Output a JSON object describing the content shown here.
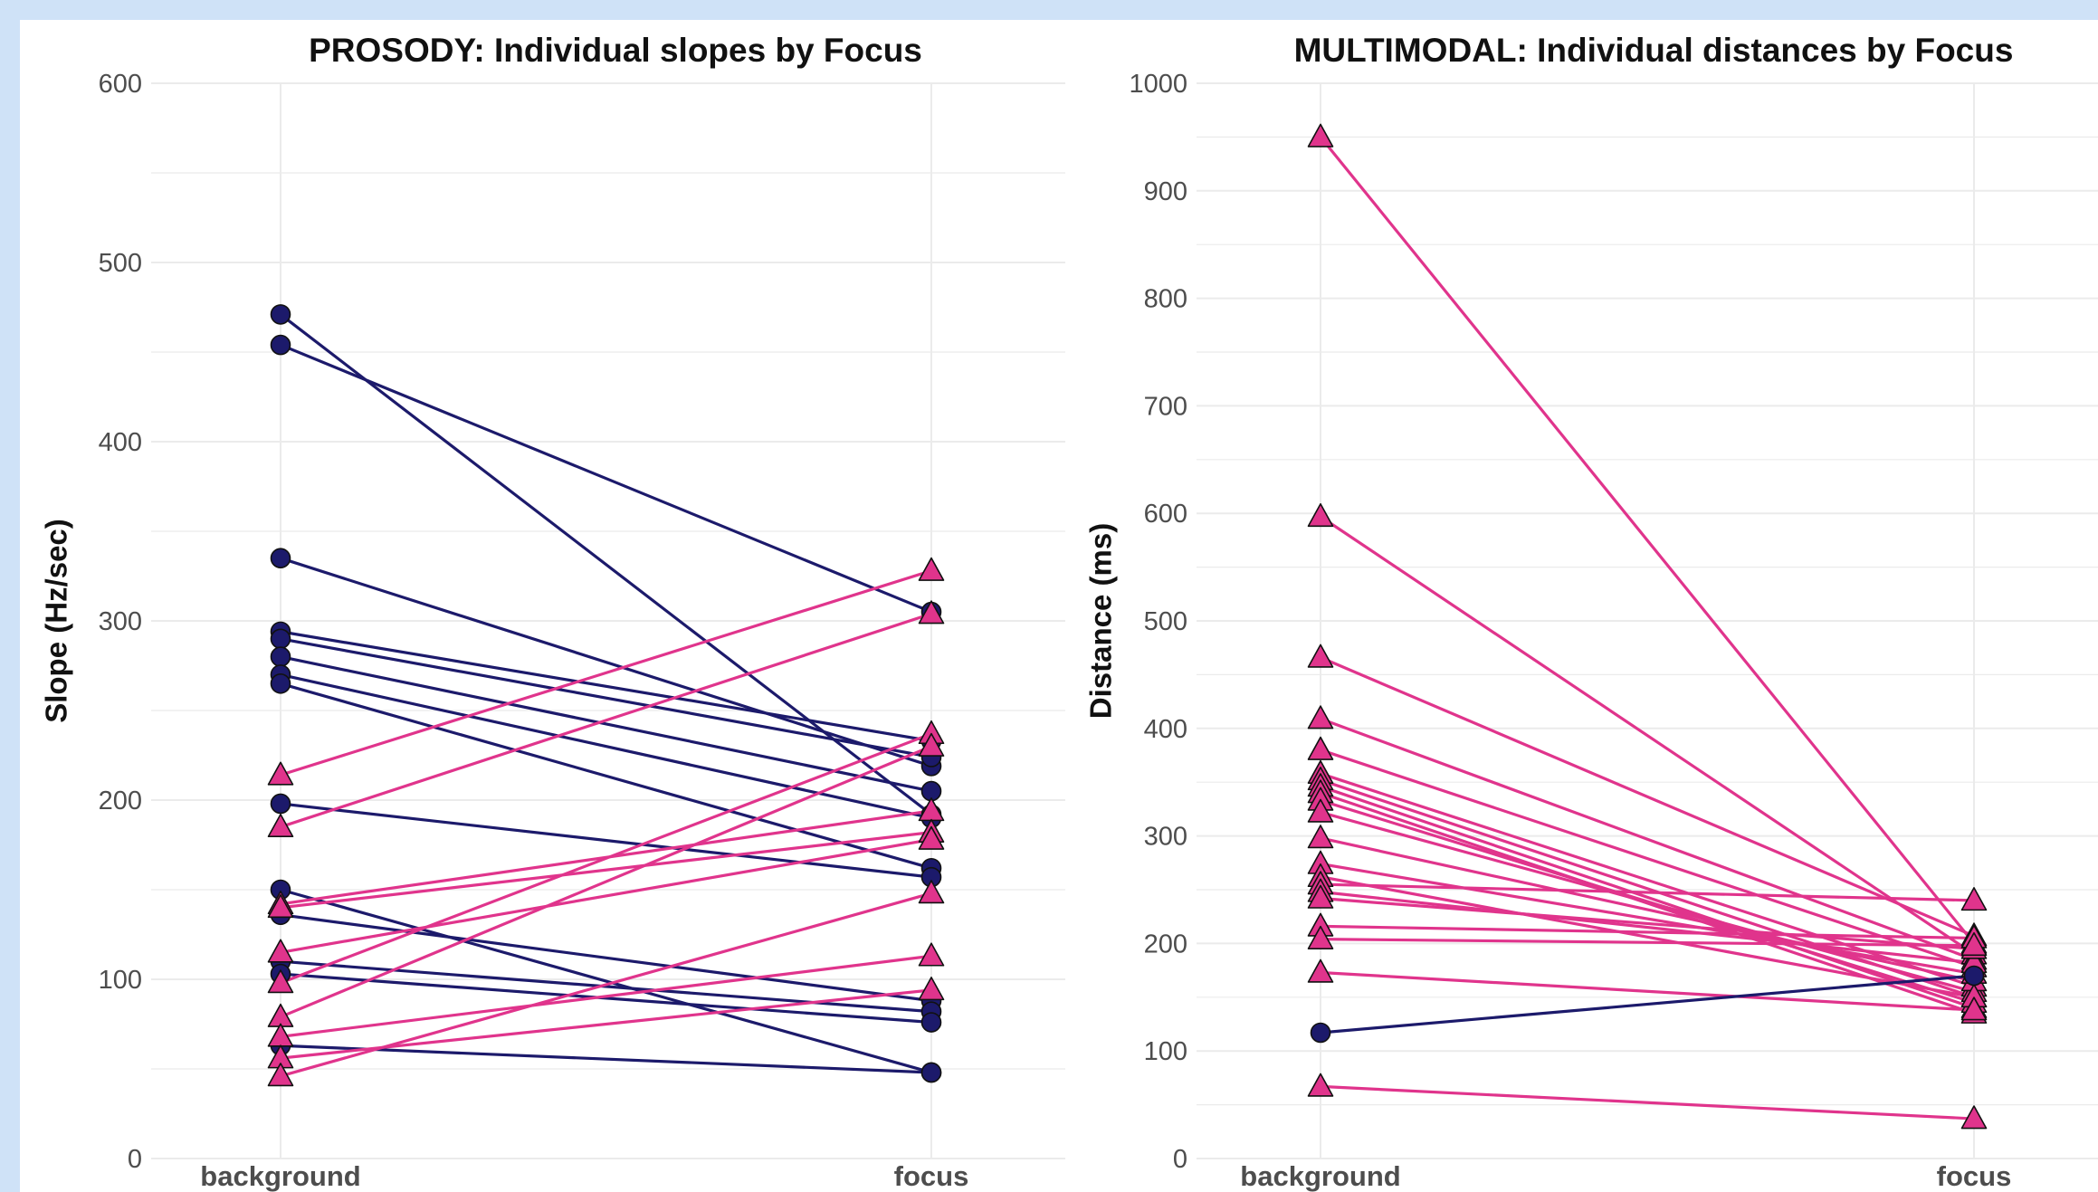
{
  "colors": {
    "background_series": "#1c1a6b",
    "focus_series": "#e0348c",
    "marker_outline": "#111111",
    "grid": "#ebebeb",
    "page_border": "#cfe2f7"
  },
  "chart_data": [
    {
      "type": "line",
      "title": "PROSODY: Individual slopes by Focus",
      "xlabel": "",
      "ylabel": "Slope (Hz/sec)",
      "categories": [
        "background",
        "focus"
      ],
      "ylim": [
        0,
        600
      ],
      "yticks": [
        0,
        100,
        200,
        300,
        400,
        500,
        600
      ],
      "grid": true,
      "legend": "none",
      "series": [
        {
          "marker": "circle",
          "color": "#1c1a6b",
          "values": [
            471,
            192
          ]
        },
        {
          "marker": "circle",
          "color": "#1c1a6b",
          "values": [
            454,
            305
          ]
        },
        {
          "marker": "circle",
          "color": "#1c1a6b",
          "values": [
            335,
            219
          ]
        },
        {
          "marker": "circle",
          "color": "#1c1a6b",
          "values": [
            294,
            233
          ]
        },
        {
          "marker": "circle",
          "color": "#1c1a6b",
          "values": [
            290,
            224
          ]
        },
        {
          "marker": "circle",
          "color": "#1c1a6b",
          "values": [
            280,
            205
          ]
        },
        {
          "marker": "circle",
          "color": "#1c1a6b",
          "values": [
            270,
            190
          ]
        },
        {
          "marker": "circle",
          "color": "#1c1a6b",
          "values": [
            265,
            162
          ]
        },
        {
          "marker": "circle",
          "color": "#1c1a6b",
          "values": [
            198,
            157
          ]
        },
        {
          "marker": "circle",
          "color": "#1c1a6b",
          "values": [
            150,
            48
          ]
        },
        {
          "marker": "circle",
          "color": "#1c1a6b",
          "values": [
            136,
            88
          ]
        },
        {
          "marker": "circle",
          "color": "#1c1a6b",
          "values": [
            110,
            82
          ]
        },
        {
          "marker": "circle",
          "color": "#1c1a6b",
          "values": [
            103,
            76
          ]
        },
        {
          "marker": "circle",
          "color": "#1c1a6b",
          "values": [
            63,
            48
          ]
        },
        {
          "marker": "triangle",
          "color": "#e0348c",
          "values": [
            214,
            328
          ]
        },
        {
          "marker": "triangle",
          "color": "#e0348c",
          "values": [
            185,
            304
          ]
        },
        {
          "marker": "triangle",
          "color": "#e0348c",
          "values": [
            142,
            194
          ]
        },
        {
          "marker": "triangle",
          "color": "#e0348c",
          "values": [
            140,
            182
          ]
        },
        {
          "marker": "triangle",
          "color": "#e0348c",
          "values": [
            115,
            178
          ]
        },
        {
          "marker": "triangle",
          "color": "#e0348c",
          "values": [
            98,
            237
          ]
        },
        {
          "marker": "triangle",
          "color": "#e0348c",
          "values": [
            79,
            230
          ]
        },
        {
          "marker": "triangle",
          "color": "#e0348c",
          "values": [
            68,
            113
          ]
        },
        {
          "marker": "triangle",
          "color": "#e0348c",
          "values": [
            56,
            94
          ]
        },
        {
          "marker": "triangle",
          "color": "#e0348c",
          "values": [
            46,
            148
          ]
        }
      ]
    },
    {
      "type": "line",
      "title": "MULTIMODAL: Individual distances by Focus",
      "xlabel": "",
      "ylabel": "Distance (ms)",
      "categories": [
        "background",
        "focus"
      ],
      "ylim": [
        0,
        1000
      ],
      "yticks": [
        0,
        100,
        200,
        300,
        400,
        500,
        600,
        700,
        800,
        900,
        1000
      ],
      "grid": true,
      "legend": "none",
      "series": [
        {
          "marker": "triangle",
          "color": "#e0348c",
          "values": [
            950,
            200
          ]
        },
        {
          "marker": "triangle",
          "color": "#e0348c",
          "values": [
            597,
            190
          ]
        },
        {
          "marker": "triangle",
          "color": "#e0348c",
          "values": [
            466,
            207
          ]
        },
        {
          "marker": "triangle",
          "color": "#e0348c",
          "values": [
            409,
            185
          ]
        },
        {
          "marker": "triangle",
          "color": "#e0348c",
          "values": [
            380,
            178
          ]
        },
        {
          "marker": "triangle",
          "color": "#e0348c",
          "values": [
            358,
            160
          ]
        },
        {
          "marker": "triangle",
          "color": "#e0348c",
          "values": [
            352,
            150
          ]
        },
        {
          "marker": "triangle",
          "color": "#e0348c",
          "values": [
            346,
            140
          ]
        },
        {
          "marker": "triangle",
          "color": "#e0348c",
          "values": [
            340,
            135
          ]
        },
        {
          "marker": "triangle",
          "color": "#e0348c",
          "values": [
            333,
            145
          ]
        },
        {
          "marker": "triangle",
          "color": "#e0348c",
          "values": [
            322,
            155
          ]
        },
        {
          "marker": "triangle",
          "color": "#e0348c",
          "values": [
            298,
            165
          ]
        },
        {
          "marker": "triangle",
          "color": "#e0348c",
          "values": [
            274,
            172
          ]
        },
        {
          "marker": "triangle",
          "color": "#e0348c",
          "values": [
            262,
            150
          ]
        },
        {
          "marker": "triangle",
          "color": "#e0348c",
          "values": [
            255,
            240
          ]
        },
        {
          "marker": "triangle",
          "color": "#e0348c",
          "values": [
            248,
            182
          ]
        },
        {
          "marker": "triangle",
          "color": "#e0348c",
          "values": [
            242,
            195
          ]
        },
        {
          "marker": "triangle",
          "color": "#e0348c",
          "values": [
            216,
            205
          ]
        },
        {
          "marker": "triangle",
          "color": "#e0348c",
          "values": [
            204,
            198
          ]
        },
        {
          "marker": "triangle",
          "color": "#e0348c",
          "values": [
            173,
            138
          ]
        },
        {
          "marker": "triangle",
          "color": "#e0348c",
          "values": [
            67,
            37
          ]
        },
        {
          "marker": "circle",
          "color": "#1c1a6b",
          "values": [
            117,
            170
          ]
        }
      ]
    }
  ]
}
